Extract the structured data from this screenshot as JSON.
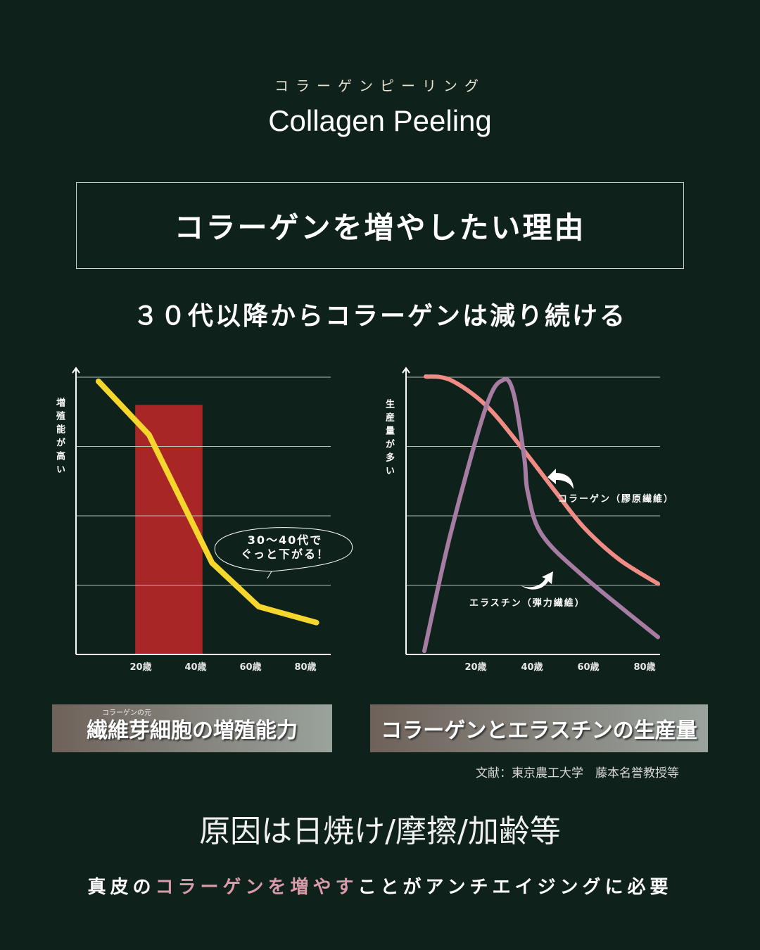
{
  "header": {
    "kana": "コラーゲンピーリング",
    "title": "Collagen Peeling"
  },
  "box_title": "コラーゲンを増やしたい理由",
  "subtitle": "３０代以降からコラーゲンは減り続ける",
  "chart_data": [
    {
      "type": "line",
      "title": "繊維芽細胞の増殖能力",
      "title_ruby": "コラーゲンの元",
      "ylabel": "増殖能が高い",
      "xlabel": "",
      "x_ticks": [
        {
          "v": 20,
          "label": "20歳"
        },
        {
          "v": 40,
          "label": "40歳"
        },
        {
          "v": 60,
          "label": "60歳"
        },
        {
          "v": 80,
          "label": "80歳"
        }
      ],
      "ylim": [
        0,
        4
      ],
      "grid": true,
      "highlight": {
        "x": [
          18,
          42.5
        ],
        "y_top": 3.6,
        "color": "#a82626"
      },
      "annotation": "30〜40代で\nぐっと下がる！",
      "series": [
        {
          "name": "増殖能力",
          "color": "#f5d62c",
          "points": [
            [
              4.6,
              3.94
            ],
            [
              23,
              3.17
            ],
            [
              46,
              1.32
            ],
            [
              63,
              0.69
            ],
            [
              84,
              0.46
            ]
          ]
        }
      ]
    },
    {
      "type": "line",
      "title": "コラーゲンとエラスチンの生産量",
      "ylabel": "生産量が多い",
      "xlabel": "",
      "x_ticks": [
        {
          "v": 20,
          "label": "20歳"
        },
        {
          "v": 40,
          "label": "40歳"
        },
        {
          "v": 60,
          "label": "60歳"
        },
        {
          "v": 80,
          "label": "80歳"
        }
      ],
      "ylim": [
        0,
        4
      ],
      "grid": true,
      "series": [
        {
          "name": "コラーゲン（膠原繊維）",
          "color": "#f08b86",
          "points": [
            [
              2.25,
              4.01
            ],
            [
              11,
              3.96
            ],
            [
              23.5,
              3.6
            ],
            [
              36,
              3.0
            ],
            [
              48.5,
              2.34
            ],
            [
              58.5,
              1.83
            ],
            [
              71,
              1.37
            ],
            [
              84.75,
              1.02
            ]
          ]
        },
        {
          "name": "エラスチン（弾力繊維）",
          "color": "#a77ca2",
          "points": [
            [
              1.75,
              0.05
            ],
            [
              11,
              1.73
            ],
            [
              23.5,
              3.55
            ],
            [
              29.75,
              3.96
            ],
            [
              33.5,
              3.76
            ],
            [
              37.25,
              2.84
            ],
            [
              38.5,
              2.34
            ],
            [
              43.5,
              1.73
            ],
            [
              58.5,
              1.12
            ],
            [
              84.75,
              0.25
            ]
          ]
        }
      ]
    }
  ],
  "reference": "文献：東京農工大学　藤本名誉教授等",
  "cause": "原因は日焼け/摩擦/加齢等",
  "footer": {
    "pre": "真皮の",
    "highlight": "コラーゲンを増やす",
    "post": "ことがアンチエイジングに必要"
  }
}
